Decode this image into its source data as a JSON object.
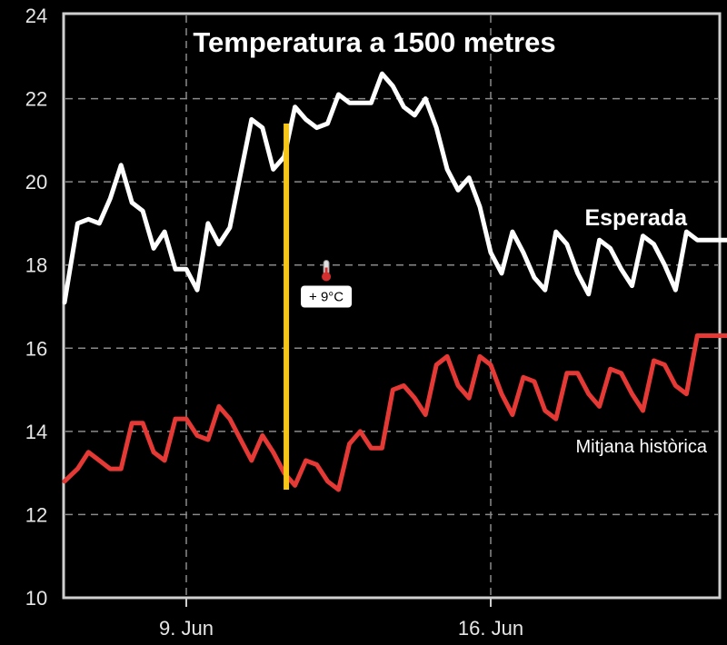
{
  "chart_data": {
    "type": "line",
    "title": "Temperatura a 1500 metres",
    "ylim": [
      10,
      24
    ],
    "yticks": [
      10,
      12,
      14,
      16,
      18,
      20,
      22,
      24
    ],
    "xticks": [
      {
        "label": "9. Jun",
        "day": 9
      },
      {
        "label": "16. Jun",
        "day": 16
      }
    ],
    "grid": true,
    "x": [
      6.2,
      6.5,
      6.75,
      7,
      7.25,
      7.5,
      7.75,
      8,
      8.25,
      8.5,
      8.75,
      9,
      9.25,
      9.5,
      9.75,
      10,
      10.25,
      10.5,
      10.75,
      11,
      11.25,
      11.5,
      11.75,
      12,
      12.25,
      12.5,
      12.75,
      13,
      13.25,
      13.5,
      13.75,
      14,
      14.25,
      14.5,
      14.75,
      15,
      15.25,
      15.5,
      15.75,
      16,
      16.25,
      16.5,
      16.75,
      17,
      17.25,
      17.5,
      17.75,
      18,
      18.25,
      18.5,
      18.75,
      19,
      19.25,
      19.5,
      19.75,
      20,
      20.25,
      20.5,
      20.75,
      21,
      21.25,
      21.5
    ],
    "series": [
      {
        "name": "Esperada",
        "color": "#ffffff",
        "values": [
          17.1,
          19.0,
          19.1,
          19.0,
          19.6,
          20.4,
          19.5,
          19.3,
          18.4,
          18.8,
          17.9,
          17.9,
          17.4,
          19.0,
          18.5,
          18.9,
          20.2,
          21.5,
          21.3,
          20.3,
          20.6,
          21.8,
          21.5,
          21.3,
          21.4,
          22.1,
          21.9,
          21.9,
          21.9,
          22.6,
          22.3,
          21.8,
          21.6,
          22.0,
          21.3,
          20.3,
          19.8,
          20.1,
          19.4,
          18.3,
          17.8,
          18.8,
          18.3,
          17.7,
          17.4,
          18.8,
          18.5,
          17.8,
          17.3,
          18.6,
          18.4,
          17.9,
          17.5,
          18.7,
          18.5,
          18.0,
          17.4,
          18.8,
          18.6,
          18.6,
          18.6,
          18.6
        ],
        "label_pos": "right"
      },
      {
        "name": "Mitjana històrica",
        "color": "#e53935",
        "values": [
          12.8,
          13.1,
          13.5,
          13.3,
          13.1,
          13.1,
          14.2,
          14.2,
          13.5,
          13.3,
          14.3,
          14.3,
          13.9,
          13.8,
          14.6,
          14.3,
          13.8,
          13.3,
          13.9,
          13.5,
          13.0,
          12.7,
          13.3,
          13.2,
          12.8,
          12.6,
          13.7,
          14.0,
          13.6,
          13.6,
          15.0,
          15.1,
          14.8,
          14.4,
          15.6,
          15.8,
          15.1,
          14.8,
          15.8,
          15.6,
          14.9,
          14.4,
          15.3,
          15.2,
          14.5,
          14.3,
          15.4,
          15.4,
          14.9,
          14.6,
          15.5,
          15.4,
          14.9,
          14.5,
          15.7,
          15.6,
          15.1,
          14.9,
          16.3,
          16.3,
          16.3,
          16.3
        ],
        "label_pos": "right"
      }
    ],
    "marker": {
      "x": 11.3,
      "y_top": 21.4,
      "y_bottom": 12.6,
      "color": "#f5c518",
      "label": "+ 9°C"
    }
  }
}
